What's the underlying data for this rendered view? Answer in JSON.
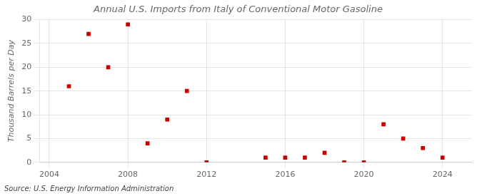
{
  "chart_data": {
    "type": "scatter",
    "title": "Annual U.S. Imports from Italy of Conventional Motor Gasoline",
    "ylabel": "Thousand Barrels per Day",
    "annotation": "Source: U.S. Energy Information Administration",
    "x": [
      2005,
      2006,
      2007,
      2008,
      2009,
      2010,
      2011,
      2012,
      2015,
      2016,
      2017,
      2018,
      2019,
      2020,
      2021,
      2022,
      2023,
      2024
    ],
    "values": [
      16,
      27,
      20,
      29,
      4,
      9,
      15,
      0,
      1,
      1,
      1,
      2,
      0,
      0,
      8,
      5,
      3,
      1
    ],
    "color": "#cc0000",
    "marker": "square",
    "xlim": [
      2003.5,
      2025.5
    ],
    "xticks": [
      2004,
      2008,
      2012,
      2016,
      2020,
      2024
    ],
    "ylim": [
      0,
      30
    ],
    "yticks": [
      0,
      5,
      10,
      15,
      20,
      25,
      30
    ],
    "grid": true
  }
}
